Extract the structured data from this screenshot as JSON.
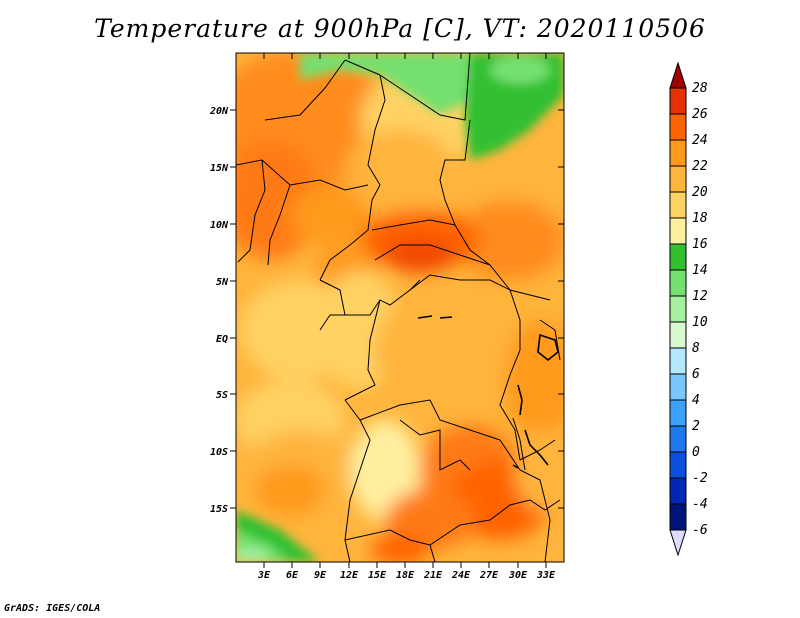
{
  "title": "Temperature at 900hPa [C], VT: 2020110506",
  "credit": "GrADS: IGES/COLA",
  "map": {
    "lat_labels": [
      "20N",
      "15N",
      "10N",
      "5N",
      "EQ",
      "5S",
      "10S",
      "15S"
    ],
    "lon_labels": [
      "3E",
      "6E",
      "9E",
      "12E",
      "15E",
      "18E",
      "21E",
      "24E",
      "27E",
      "30E",
      "33E"
    ]
  },
  "colorbar": {
    "labels": [
      "28",
      "26",
      "24",
      "22",
      "20",
      "18",
      "16",
      "14",
      "12",
      "10",
      "8",
      "6",
      "4",
      "2",
      "0",
      "-2",
      "-4",
      "-6"
    ],
    "colors": [
      "#a00000",
      "#e53200",
      "#ff6400",
      "#ff9a1e",
      "#ffb43c",
      "#ffd264",
      "#fff0a0",
      "#30c030",
      "#74e070",
      "#a4f0a0",
      "#d8f8d0",
      "#b4e8ff",
      "#78c8ff",
      "#3ca0ff",
      "#1e78f0",
      "#0a50dc",
      "#0028b4",
      "#00147a",
      "#dcdcff"
    ]
  }
}
